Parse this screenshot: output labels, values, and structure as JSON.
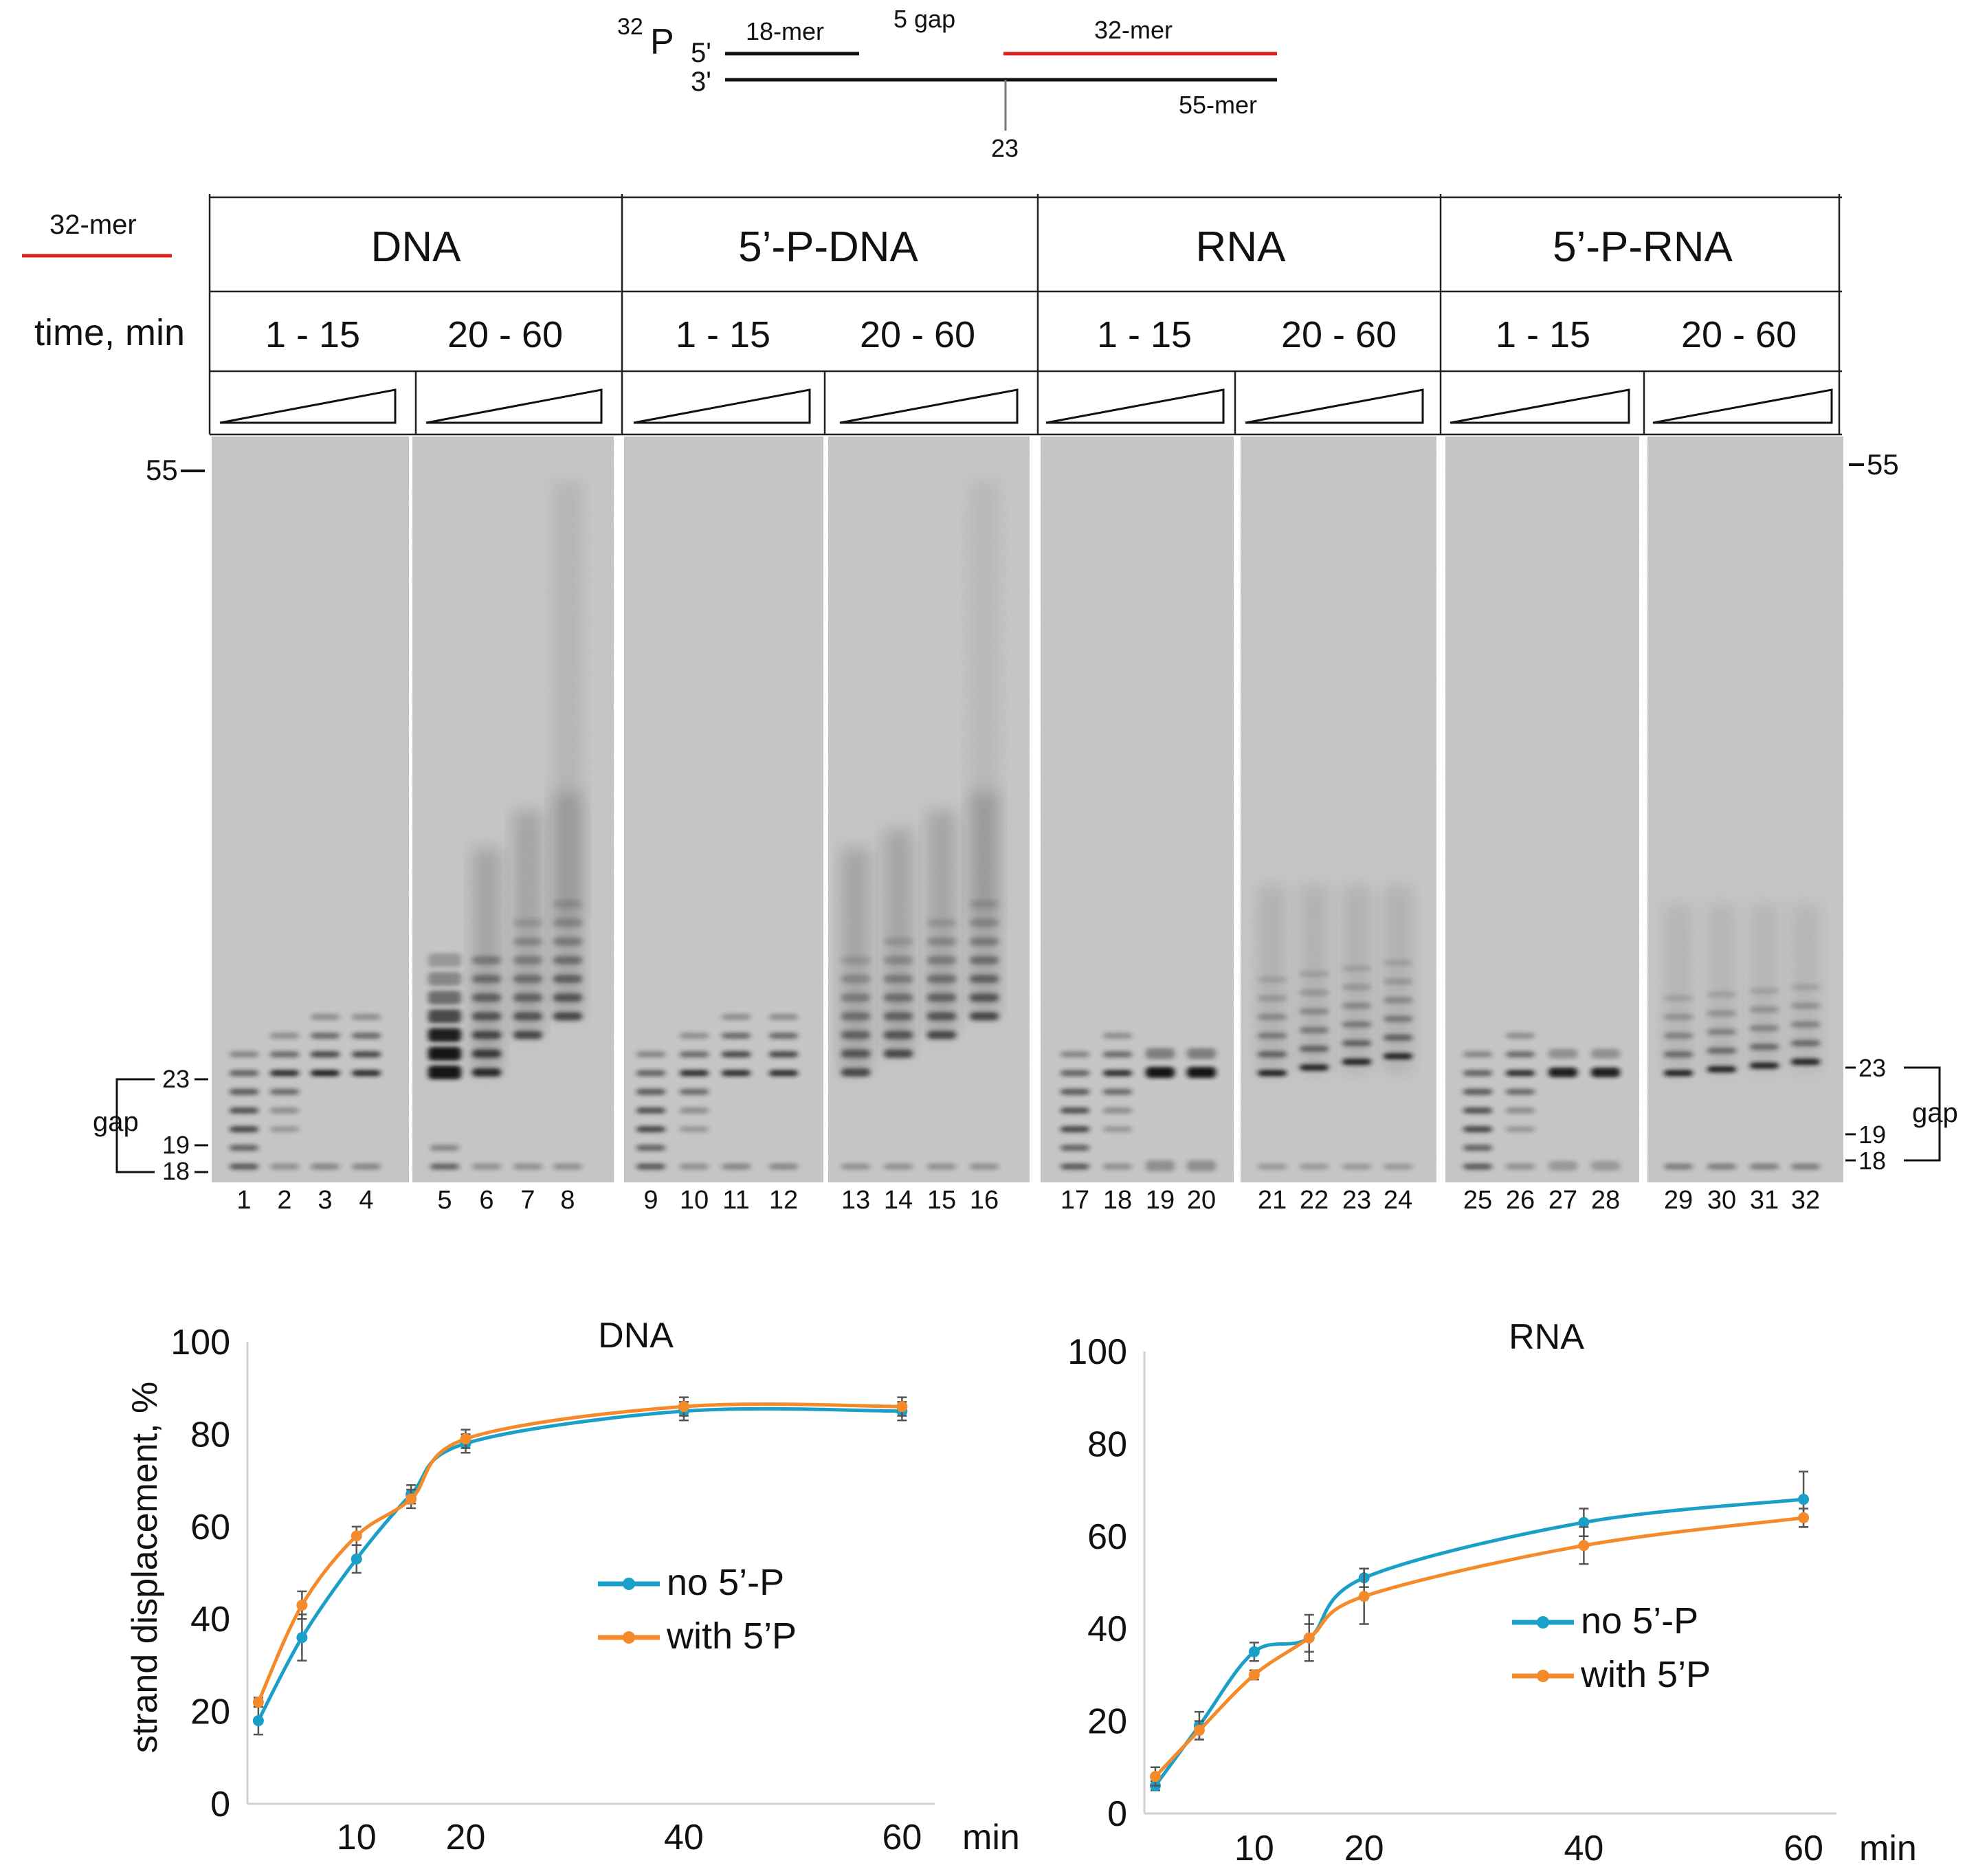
{
  "colors": {
    "red": "#e0201c",
    "blue": "#1aa0c8",
    "orange": "#f58a2a",
    "gel_bg": "#c4c4c4",
    "band": "#141414",
    "ink": "#111111"
  },
  "schematic": {
    "label_32p_sup": "32",
    "label_32p_p": "P",
    "label_5prime": "5'",
    "label_3prime": "3'",
    "label_18mer": "18-mer",
    "label_5gap": "5 gap",
    "label_32mer": "32-mer",
    "label_55mer": "55-mer",
    "label_23": "23"
  },
  "gel": {
    "legend_32mer": "32-mer",
    "time_label": "time, min",
    "groups": [
      {
        "name": "DNA",
        "ranges": [
          "1 - 15",
          "20 - 60"
        ]
      },
      {
        "name": "5’-P-DNA",
        "ranges": [
          "1 - 15",
          "20 - 60"
        ]
      },
      {
        "name": "RNA",
        "ranges": [
          "1 - 15",
          "20 - 60"
        ]
      },
      {
        "name": "5’-P-RNA",
        "ranges": [
          "1 - 15",
          "20 - 60"
        ]
      }
    ],
    "lanes": [
      "1",
      "2",
      "3",
      "4",
      "5",
      "6",
      "7",
      "8",
      "9",
      "10",
      "11",
      "12",
      "13",
      "14",
      "15",
      "16",
      "17",
      "18",
      "19",
      "20",
      "21",
      "22",
      "23",
      "24",
      "25",
      "26",
      "27",
      "28",
      "29",
      "30",
      "31",
      "32"
    ],
    "markers_left": {
      "m55": "55",
      "m23": "23",
      "m19": "19",
      "m18": "18",
      "gap": "gap"
    },
    "markers_right": {
      "m55": "55",
      "m23": "23",
      "m19": "19",
      "m18": "18",
      "gap": "gap"
    }
  },
  "chart_data": [
    {
      "type": "line",
      "title": "DNA",
      "xlabel": "min",
      "ylabel": "strand displacement, %",
      "xlim": [
        0,
        63
      ],
      "ylim": [
        0,
        100
      ],
      "xticks": [
        10,
        20,
        40,
        60
      ],
      "yticks": [
        0,
        20,
        40,
        60,
        80,
        100
      ],
      "x": [
        1,
        5,
        10,
        15,
        20,
        40,
        60
      ],
      "series": [
        {
          "name": "no 5’-P",
          "color": "#1aa0c8",
          "values": [
            18,
            36,
            53,
            67,
            78,
            85,
            85
          ],
          "errors": [
            3,
            5,
            3,
            2,
            2,
            2,
            2
          ]
        },
        {
          "name": "with 5’P",
          "color": "#f58a2a",
          "values": [
            22,
            43,
            58,
            66,
            79,
            86,
            86
          ],
          "errors": [
            1,
            3,
            2,
            2,
            2,
            2,
            2
          ]
        }
      ],
      "legend_position": "center-right"
    },
    {
      "type": "line",
      "title": "RNA",
      "xlabel": "min",
      "ylabel": "",
      "xlim": [
        0,
        63
      ],
      "ylim": [
        0,
        100
      ],
      "xticks": [
        10,
        20,
        40,
        60
      ],
      "yticks": [
        0,
        20,
        40,
        60,
        80,
        100
      ],
      "x": [
        1,
        5,
        10,
        15,
        20,
        40,
        60
      ],
      "series": [
        {
          "name": "no 5’-P",
          "color": "#1aa0c8",
          "values": [
            6,
            19,
            35,
            38,
            51,
            63,
            68
          ],
          "errors": [
            1,
            3,
            2,
            3,
            2,
            3,
            6
          ]
        },
        {
          "name": "with 5’P",
          "color": "#f58a2a",
          "values": [
            8,
            18,
            30,
            38,
            47,
            58,
            64
          ],
          "errors": [
            2,
            2,
            1,
            5,
            6,
            4,
            2
          ]
        }
      ],
      "legend_position": "lower-right"
    }
  ]
}
